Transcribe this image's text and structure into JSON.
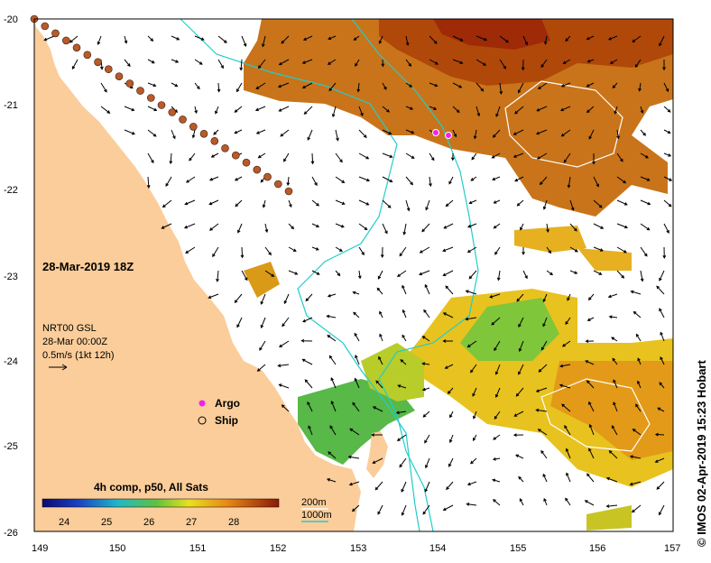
{
  "map": {
    "lon_ticks": [
      "149",
      "150",
      "151",
      "152",
      "153",
      "154",
      "155",
      "156",
      "157"
    ],
    "lat_ticks": [
      "-20",
      "-21",
      "-22",
      "-23",
      "-24",
      "-25",
      "-26"
    ]
  },
  "labels": {
    "datetime": "28-Mar-2019 18Z",
    "current_product": "NRT00 GSL",
    "current_time": "28-Mar 00:00Z",
    "arrow_scale": "0.5m/s (1kt 12h)",
    "argo_legend": "Argo",
    "ship_legend": "Ship",
    "composite": "4h comp, p50, All Sats",
    "contour_200": "200m",
    "contour_1000": "1000m",
    "credit": "© IMOS 02-Apr-2019 15:23 Hobart"
  },
  "colorbar": {
    "ticks": [
      "24",
      "25",
      "26",
      "27",
      "28"
    ]
  },
  "colors": {
    "land": "#fbcd9a",
    "argo": "#ee22ee",
    "ship_fill": "#b85a2a",
    "contour": "#22cccc",
    "contour_white": "#ffffff"
  }
}
